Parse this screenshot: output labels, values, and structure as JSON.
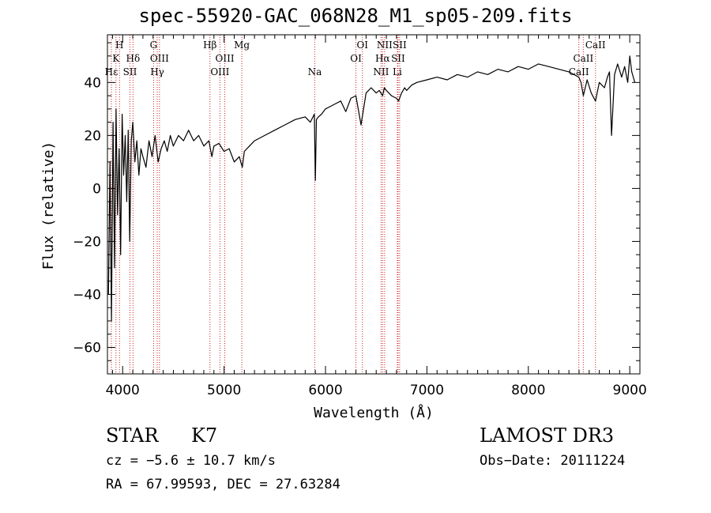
{
  "title": "spec-55920-GAC_068N28_M1_sp05-209.fits",
  "info": {
    "object_class": "STAR",
    "subclass": "K7",
    "survey": "LAMOST DR3",
    "redshift": "cz = −5.6 ± 10.7 km/s",
    "obs_date": "Obs−Date: 20111224",
    "coords": "RA =  67.99593, DEC =  27.63284"
  },
  "colors": {
    "line_marker": "#cc2222",
    "spectrum": "#000000",
    "axes": "#000000"
  },
  "chart_data": {
    "type": "line",
    "title": "spec-55920-GAC_068N28_M1_sp05-209.fits",
    "xlabel": "Wavelength (Å)",
    "ylabel": "Flux (relative)",
    "xlim": [
      3850,
      9100
    ],
    "ylim": [
      -70,
      58
    ],
    "xticks": [
      4000,
      5000,
      6000,
      7000,
      8000,
      9000
    ],
    "xtick_labels": [
      "4000",
      "5000",
      "6000",
      "7000",
      "8000",
      "9000"
    ],
    "yticks": [
      -60,
      -40,
      -20,
      0,
      20,
      40
    ],
    "ytick_labels": [
      "−60",
      "−40",
      "−20",
      "0",
      "20",
      "40"
    ],
    "grid": false,
    "series": [
      {
        "name": "flux",
        "x": [
          3860,
          3875,
          3890,
          3905,
          3920,
          3935,
          3950,
          3965,
          3980,
          3995,
          4010,
          4025,
          4040,
          4055,
          4070,
          4085,
          4100,
          4120,
          4140,
          4160,
          4180,
          4200,
          4230,
          4260,
          4290,
          4320,
          4350,
          4380,
          4410,
          4440,
          4470,
          4500,
          4550,
          4600,
          4650,
          4700,
          4750,
          4800,
          4850,
          4880,
          4900,
          4950,
          5000,
          5050,
          5100,
          5150,
          5180,
          5200,
          5250,
          5300,
          5400,
          5500,
          5600,
          5700,
          5800,
          5850,
          5890,
          5900,
          5910,
          5930,
          5960,
          6000,
          6050,
          6100,
          6150,
          6200,
          6250,
          6300,
          6350,
          6400,
          6450,
          6500,
          6530,
          6563,
          6580,
          6600,
          6650,
          6700,
          6720,
          6750,
          6780,
          6800,
          6850,
          6900,
          7000,
          7100,
          7200,
          7300,
          7400,
          7500,
          7600,
          7700,
          7800,
          7900,
          8000,
          8100,
          8200,
          8300,
          8400,
          8450,
          8498,
          8520,
          8542,
          8580,
          8620,
          8662,
          8700,
          8750,
          8780,
          8800,
          8820,
          8850,
          8880,
          8920,
          8950,
          8980,
          9000,
          9020,
          9050
        ],
        "values": [
          -40,
          10,
          -50,
          25,
          -30,
          30,
          -10,
          15,
          -25,
          28,
          5,
          20,
          -5,
          22,
          -20,
          18,
          25,
          10,
          18,
          5,
          15,
          12,
          8,
          18,
          12,
          20,
          10,
          15,
          18,
          14,
          20,
          16,
          20,
          18,
          22,
          18,
          20,
          16,
          18,
          12,
          16,
          17,
          14,
          15,
          10,
          12,
          8,
          14,
          16,
          18,
          20,
          22,
          24,
          26,
          27,
          25,
          28,
          3,
          26,
          27,
          28,
          30,
          31,
          32,
          33,
          29,
          34,
          35,
          24,
          36,
          38,
          36,
          37,
          35,
          38,
          37,
          35,
          34,
          33,
          36,
          38,
          37,
          39,
          40,
          41,
          42,
          41,
          43,
          42,
          44,
          43,
          45,
          44,
          46,
          45,
          47,
          46,
          45,
          44,
          43,
          42,
          40,
          35,
          41,
          36,
          33,
          40,
          38,
          42,
          44,
          20,
          43,
          47,
          42,
          46,
          40,
          50,
          44,
          40
        ]
      }
    ],
    "line_markers": [
      {
        "label": "Hε",
        "wavelength": 3889,
        "row": 3
      },
      {
        "label": "K",
        "wavelength": 3934,
        "row": 2
      },
      {
        "label": "H",
        "wavelength": 3969,
        "row": 1
      },
      {
        "label": "SII",
        "wavelength": 4072,
        "row": 3
      },
      {
        "label": "Hδ",
        "wavelength": 4102,
        "row": 2
      },
      {
        "label": "G",
        "wavelength": 4305,
        "row": 1
      },
      {
        "label": "Hγ",
        "wavelength": 4341,
        "row": 3
      },
      {
        "label": "OIII",
        "wavelength": 4363,
        "row": 2
      },
      {
        "label": "Hβ",
        "wavelength": 4861,
        "row": 1
      },
      {
        "label": "OIII",
        "wavelength": 4959,
        "row": 3
      },
      {
        "label": "OIII",
        "wavelength": 5007,
        "row": 2
      },
      {
        "label": "Mg",
        "wavelength": 5175,
        "row": 1
      },
      {
        "label": "Na",
        "wavelength": 5894,
        "row": 3
      },
      {
        "label": "OI",
        "wavelength": 6300,
        "row": 2
      },
      {
        "label": "OI",
        "wavelength": 6364,
        "row": 1
      },
      {
        "label": "NII",
        "wavelength": 6548,
        "row": 3
      },
      {
        "label": "Hα",
        "wavelength": 6563,
        "row": 2
      },
      {
        "label": "NII",
        "wavelength": 6583,
        "row": 1
      },
      {
        "label": "Li",
        "wavelength": 6708,
        "row": 3
      },
      {
        "label": "SII",
        "wavelength": 6716,
        "row": 2
      },
      {
        "label": "SII",
        "wavelength": 6731,
        "row": 1
      },
      {
        "label": "CaII",
        "wavelength": 8498,
        "row": 3
      },
      {
        "label": "CaII",
        "wavelength": 8542,
        "row": 2
      },
      {
        "label": "CaII",
        "wavelength": 8662,
        "row": 1
      }
    ]
  }
}
